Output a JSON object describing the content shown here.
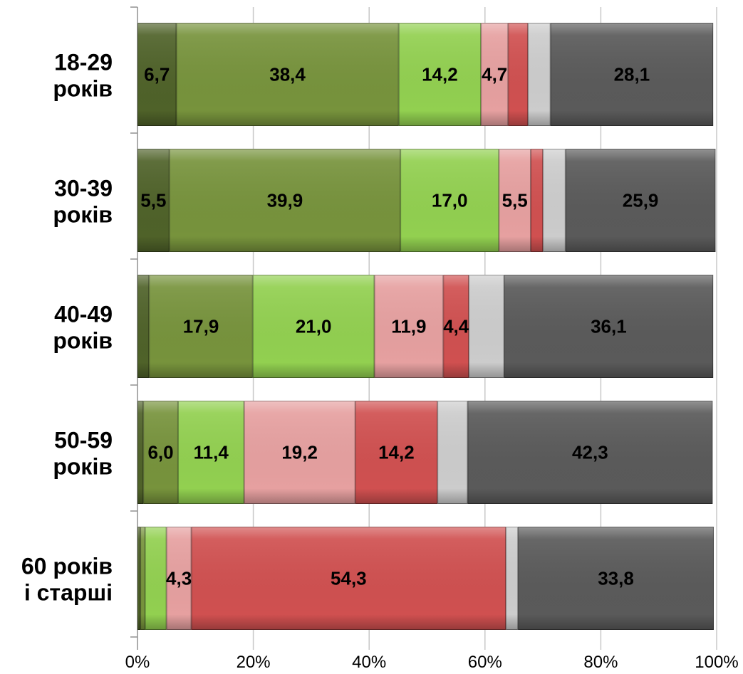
{
  "chart_data": {
    "type": "bar",
    "orientation": "horizontal",
    "stacked": "percent",
    "title": "",
    "xlabel": "",
    "ylabel": "",
    "xlim": [
      0,
      100
    ],
    "x_ticks": [
      "0%",
      "20%",
      "40%",
      "60%",
      "80%",
      "100%"
    ],
    "grid": "vertical",
    "legend": "none",
    "categories": [
      [
        "18-29",
        "років"
      ],
      [
        "30-39",
        "років"
      ],
      [
        "40-49",
        "років"
      ],
      [
        "50-59",
        "років"
      ],
      [
        "60 років",
        "і старші"
      ]
    ],
    "series": [
      {
        "color": "#4f6229",
        "values": [
          6.7,
          5.5,
          2.0,
          1.0,
          0.5
        ],
        "labels": [
          "6,7",
          "5,5",
          "",
          "",
          ""
        ]
      },
      {
        "color": "#77933c",
        "values": [
          38.4,
          39.9,
          17.9,
          6.0,
          0.8
        ],
        "labels": [
          "38,4",
          "39,9",
          "17,9",
          "6,0",
          ""
        ]
      },
      {
        "color": "#92d050",
        "values": [
          14.2,
          17.0,
          21.0,
          11.4,
          3.7
        ],
        "labels": [
          "14,2",
          "17,0",
          "21,0",
          "11,4",
          ""
        ]
      },
      {
        "color": "#e6a0a0",
        "values": [
          4.7,
          5.5,
          11.9,
          19.2,
          4.3
        ],
        "labels": [
          "4,7",
          "5,5",
          "11,9",
          "19,2",
          "4,3"
        ]
      },
      {
        "color": "#d05050",
        "values": [
          3.4,
          2.1,
          4.4,
          14.2,
          54.3
        ],
        "labels": [
          "",
          "",
          "4,4",
          "14,2",
          "54,3"
        ]
      },
      {
        "color": "#cccccc",
        "values": [
          3.9,
          3.9,
          6.1,
          5.2,
          2.1
        ],
        "labels": [
          "",
          "",
          "",
          "",
          ""
        ]
      },
      {
        "color": "#5a5a5a",
        "values": [
          28.1,
          25.9,
          36.1,
          42.3,
          33.8
        ],
        "labels": [
          "28,1",
          "25,9",
          "36,1",
          "42,3",
          "33,8"
        ]
      }
    ]
  }
}
